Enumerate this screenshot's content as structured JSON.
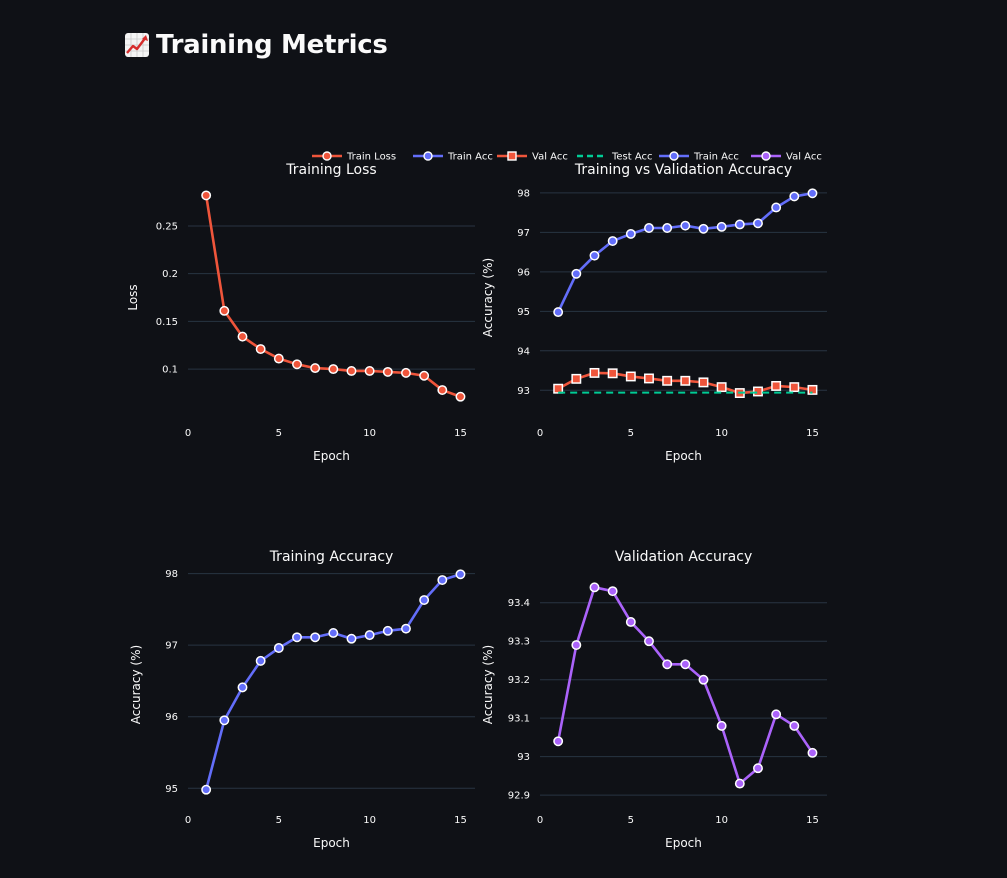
{
  "page": {
    "title": "Training Metrics",
    "title_icon": "chart-increasing-icon"
  },
  "colors": {
    "background": "#0f1116",
    "grid": "#283442",
    "text": "#fafafa",
    "train_loss": "#ef553b",
    "train_acc": "#636efa",
    "val_acc": "#ef553b",
    "test_acc": "#00cc96",
    "val_acc_panel": "#ab63fa"
  },
  "legend": {
    "placement": "top-right",
    "items": [
      {
        "label": "Train Loss",
        "color": "#ef553b",
        "style": "line-circle"
      },
      {
        "label": "Train Acc",
        "color": "#636efa",
        "style": "line-circle"
      },
      {
        "label": "Val Acc",
        "color": "#ef553b",
        "style": "line-square"
      },
      {
        "label": "Test Acc",
        "color": "#00cc96",
        "style": "dash"
      },
      {
        "label": "Train Acc",
        "color": "#636efa",
        "style": "line-circle"
      },
      {
        "label": "Val Acc",
        "color": "#ab63fa",
        "style": "line-circle"
      }
    ]
  },
  "chart_data": [
    {
      "type": "line",
      "title": "Training Loss",
      "xlabel": "Epoch",
      "ylabel": "Loss",
      "xlim": [
        0,
        15.8
      ],
      "ylim": [
        0.055,
        0.295
      ],
      "xticks": [
        0,
        5,
        10,
        15
      ],
      "yticks": [
        0.1,
        0.15,
        0.2,
        0.25
      ],
      "ytick_labels": [
        "0.1",
        "0.15",
        "0.2",
        "0.25"
      ],
      "grid": true,
      "x": [
        1,
        2,
        3,
        4,
        5,
        6,
        7,
        8,
        9,
        10,
        11,
        12,
        13,
        14,
        15
      ],
      "series": [
        {
          "name": "Train Loss",
          "color": "#ef553b",
          "marker": "circle",
          "values": [
            0.282,
            0.161,
            0.134,
            0.121,
            0.111,
            0.105,
            0.101,
            0.1,
            0.098,
            0.098,
            0.097,
            0.096,
            0.093,
            0.078,
            0.071
          ]
        }
      ]
    },
    {
      "type": "line",
      "title": "Training vs Validation Accuracy",
      "xlabel": "Epoch",
      "ylabel": "Accuracy (%)",
      "xlim": [
        0,
        15.8
      ],
      "ylim": [
        92.45,
        98.25
      ],
      "xticks": [
        0,
        5,
        10,
        15
      ],
      "yticks": [
        93,
        94,
        95,
        96,
        97,
        98
      ],
      "ytick_labels": [
        "93",
        "94",
        "95",
        "96",
        "97",
        "98"
      ],
      "grid": true,
      "x": [
        1,
        2,
        3,
        4,
        5,
        6,
        7,
        8,
        9,
        10,
        11,
        12,
        13,
        14,
        15
      ],
      "series": [
        {
          "name": "Train Acc",
          "color": "#636efa",
          "marker": "circle",
          "values": [
            94.98,
            95.95,
            96.41,
            96.78,
            96.96,
            97.11,
            97.11,
            97.17,
            97.09,
            97.14,
            97.2,
            97.23,
            97.63,
            97.91,
            97.99
          ]
        },
        {
          "name": "Val Acc",
          "color": "#ef553b",
          "marker": "square",
          "values": [
            93.04,
            93.29,
            93.44,
            93.43,
            93.35,
            93.3,
            93.24,
            93.24,
            93.2,
            93.08,
            92.93,
            92.97,
            93.11,
            93.08,
            93.01
          ]
        },
        {
          "name": "Test Acc",
          "color": "#00cc96",
          "marker": "none",
          "dash": true,
          "values": [
            92.94,
            92.94,
            92.94,
            92.94,
            92.94,
            92.94,
            92.94,
            92.94,
            92.94,
            92.94,
            92.94,
            92.94,
            92.94,
            92.94,
            92.94
          ]
        }
      ]
    },
    {
      "type": "line",
      "title": "Training Accuracy",
      "xlabel": "Epoch",
      "ylabel": "Accuracy (%)",
      "xlim": [
        0,
        15.8
      ],
      "ylim": [
        94.85,
        98.05
      ],
      "xticks": [
        0,
        5,
        10,
        15
      ],
      "yticks": [
        95,
        96,
        97,
        98
      ],
      "ytick_labels": [
        "95",
        "96",
        "97",
        "98"
      ],
      "grid": true,
      "x": [
        1,
        2,
        3,
        4,
        5,
        6,
        7,
        8,
        9,
        10,
        11,
        12,
        13,
        14,
        15
      ],
      "series": [
        {
          "name": "Train Acc",
          "color": "#636efa",
          "marker": "circle",
          "values": [
            94.98,
            95.95,
            96.41,
            96.78,
            96.96,
            97.11,
            97.11,
            97.17,
            97.09,
            97.14,
            97.2,
            97.23,
            97.63,
            97.91,
            97.99
          ]
        }
      ]
    },
    {
      "type": "line",
      "title": "Validation Accuracy",
      "xlabel": "Epoch",
      "ylabel": "Accuracy (%)",
      "xlim": [
        0,
        15.8
      ],
      "ylim": [
        92.89,
        93.485
      ],
      "xticks": [
        0,
        5,
        10,
        15
      ],
      "yticks": [
        92.9,
        93,
        93.1,
        93.2,
        93.3,
        93.4
      ],
      "ytick_labels": [
        "92.9",
        "93",
        "93.1",
        "93.2",
        "93.3",
        "93.4"
      ],
      "grid": true,
      "x": [
        1,
        2,
        3,
        4,
        5,
        6,
        7,
        8,
        9,
        10,
        11,
        12,
        13,
        14,
        15
      ],
      "series": [
        {
          "name": "Val Acc",
          "color": "#ab63fa",
          "marker": "circle",
          "values": [
            93.04,
            93.29,
            93.44,
            93.43,
            93.35,
            93.3,
            93.24,
            93.24,
            93.2,
            93.08,
            92.93,
            92.97,
            93.11,
            93.08,
            93.01
          ]
        }
      ]
    }
  ]
}
